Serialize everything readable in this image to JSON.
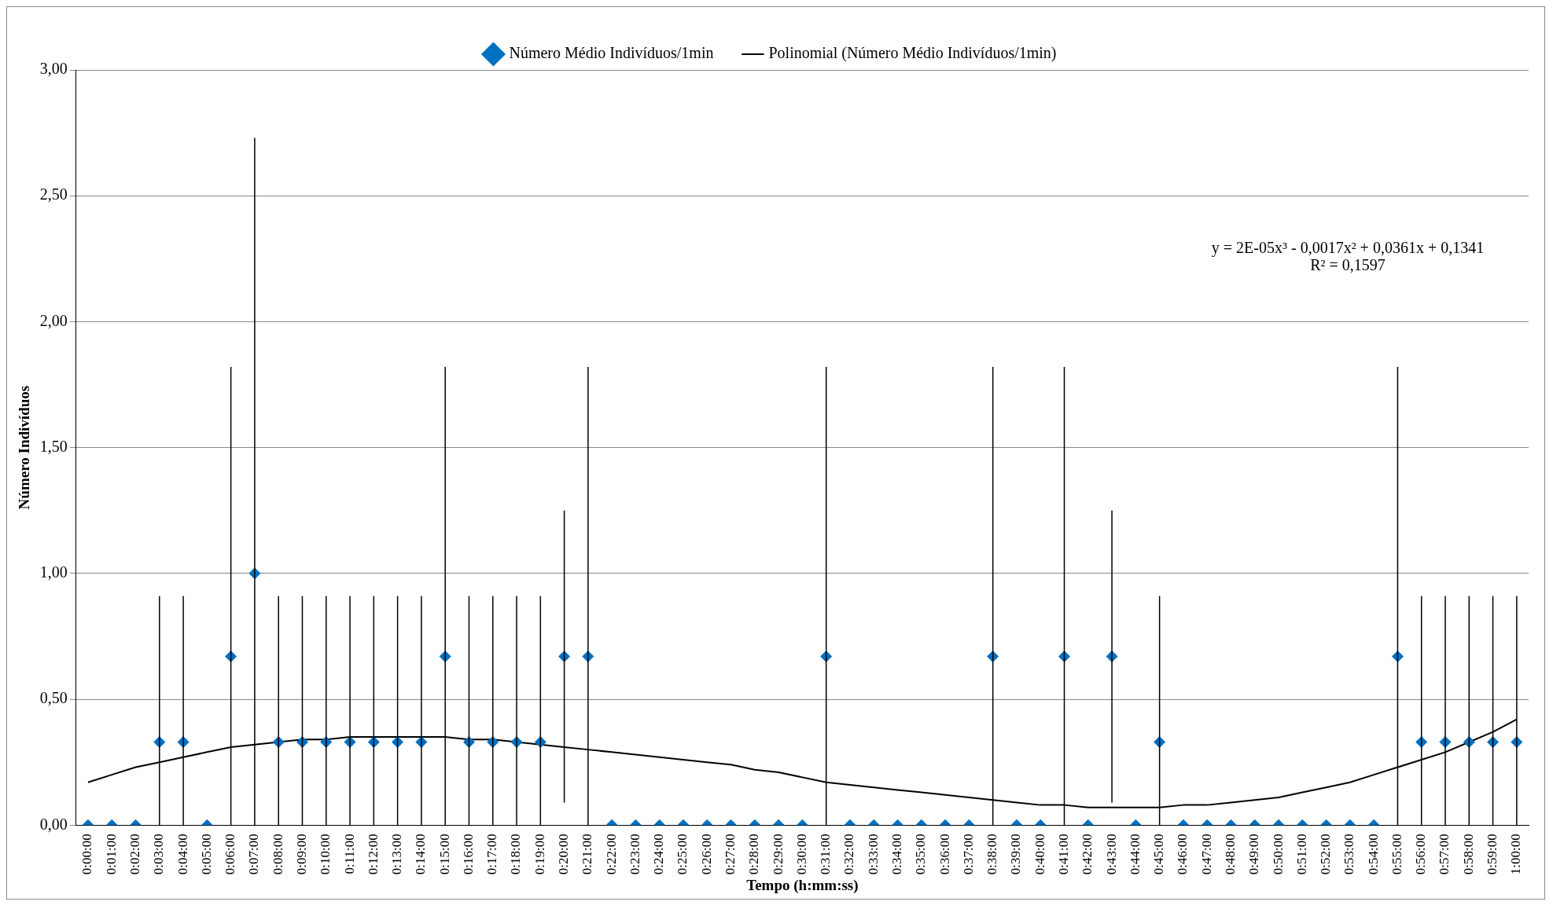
{
  "chart_data": {
    "type": "scatter",
    "xlabel": "Tempo (h:mm:ss)",
    "ylabel": "Número Indivíduos",
    "categories": [
      "0:00:00",
      "0:01:00",
      "0:02:00",
      "0:03:00",
      "0:04:00",
      "0:05:00",
      "0:06:00",
      "0:07:00",
      "0:08:00",
      "0:09:00",
      "0:10:00",
      "0:11:00",
      "0:12:00",
      "0:13:00",
      "0:14:00",
      "0:15:00",
      "0:16:00",
      "0:17:00",
      "0:18:00",
      "0:19:00",
      "0:20:00",
      "0:21:00",
      "0:22:00",
      "0:23:00",
      "0:24:00",
      "0:25:00",
      "0:26:00",
      "0:27:00",
      "0:28:00",
      "0:29:00",
      "0:30:00",
      "0:31:00",
      "0:32:00",
      "0:33:00",
      "0:34:00",
      "0:35:00",
      "0:36:00",
      "0:37:00",
      "0:38:00",
      "0:39:00",
      "0:40:00",
      "0:41:00",
      "0:42:00",
      "0:43:00",
      "0:44:00",
      "0:45:00",
      "0:46:00",
      "0:47:00",
      "0:48:00",
      "0:49:00",
      "0:50:00",
      "0:51:00",
      "0:52:00",
      "0:53:00",
      "0:54:00",
      "0:55:00",
      "0:56:00",
      "0:57:00",
      "0:58:00",
      "0:59:00",
      "1:00:00"
    ],
    "series": [
      {
        "name": "Número Médio Indivíduos/1min",
        "color": "#0070c0",
        "marker": "diamond",
        "values": [
          0,
          0,
          0,
          0.33,
          0.33,
          0,
          0.67,
          1,
          0.33,
          0.33,
          0.33,
          0.33,
          0.33,
          0.33,
          0.33,
          0.67,
          0.33,
          0.33,
          0.33,
          0.33,
          0.67,
          0.67,
          0,
          0,
          0,
          0,
          0,
          0,
          0,
          0,
          0,
          0.67,
          0,
          0,
          0,
          0,
          0,
          0,
          0.67,
          0,
          0,
          0.67,
          0,
          0.67,
          0,
          0.33,
          0,
          0,
          0,
          0,
          0,
          0,
          0,
          0,
          0,
          0.67,
          0.33,
          0.33,
          0.33,
          0.33,
          0.33
        ],
        "errors": [
          null,
          null,
          null,
          [
            0,
            0.91
          ],
          [
            0,
            0.91
          ],
          null,
          [
            0,
            1.82
          ],
          [
            0,
            2.73
          ],
          [
            0,
            0.91
          ],
          [
            0,
            0.91
          ],
          [
            0,
            0.91
          ],
          [
            0,
            0.91
          ],
          [
            0,
            0.91
          ],
          [
            0,
            0.91
          ],
          [
            0,
            0.91
          ],
          [
            0,
            1.82
          ],
          [
            0,
            0.91
          ],
          [
            0,
            0.91
          ],
          [
            0,
            0.91
          ],
          [
            0,
            0.91
          ],
          0.58,
          [
            0,
            1.82
          ],
          null,
          null,
          null,
          null,
          null,
          null,
          null,
          null,
          null,
          [
            0,
            1.82
          ],
          null,
          null,
          null,
          null,
          null,
          null,
          [
            0,
            1.82
          ],
          null,
          null,
          [
            0,
            1.82
          ],
          null,
          0.58,
          null,
          [
            0,
            0.91
          ],
          null,
          null,
          null,
          null,
          null,
          null,
          null,
          null,
          null,
          [
            0,
            1.82
          ],
          [
            0,
            0.91
          ],
          [
            0,
            0.91
          ],
          [
            0,
            0.91
          ],
          [
            0,
            0.91
          ],
          [
            0,
            0.91
          ]
        ]
      },
      {
        "name": "Polinomial (Número Médio Indivíduos/1min)",
        "type": "line",
        "color": "#000000",
        "marker": "none",
        "line_style": "solid",
        "values": [
          0.17,
          0.2,
          0.23,
          0.25,
          0.27,
          0.29,
          0.31,
          0.32,
          0.33,
          0.34,
          0.34,
          0.35,
          0.35,
          0.35,
          0.35,
          0.35,
          0.34,
          0.34,
          0.33,
          0.32,
          0.31,
          0.3,
          0.29,
          0.28,
          0.27,
          0.26,
          0.25,
          0.24,
          0.22,
          0.21,
          0.19,
          0.17,
          0.16,
          0.15,
          0.14,
          0.13,
          0.12,
          0.11,
          0.1,
          0.09,
          0.08,
          0.08,
          0.07,
          0.07,
          0.07,
          0.07,
          0.08,
          0.08,
          0.09,
          0.1,
          0.11,
          0.13,
          0.15,
          0.17,
          0.2,
          0.23,
          0.26,
          0.29,
          0.33,
          0.37,
          0.42
        ]
      }
    ],
    "ylim": [
      0,
      3
    ],
    "yticks": [
      {
        "value": 0,
        "label": "0,00"
      },
      {
        "value": 0.5,
        "label": "0,50"
      },
      {
        "value": 1,
        "label": "1,00"
      },
      {
        "value": 1.5,
        "label": "1,50"
      },
      {
        "value": 2,
        "label": "2,00"
      },
      {
        "value": 2.5,
        "label": "2,50"
      },
      {
        "value": 3,
        "label": "3,00"
      }
    ],
    "grid": "y",
    "legend": "top",
    "annotations": [
      "y = 2E-05x³ - 0,0017x² + 0,0361x + 0,1341",
      "R² = 0,1597"
    ]
  }
}
